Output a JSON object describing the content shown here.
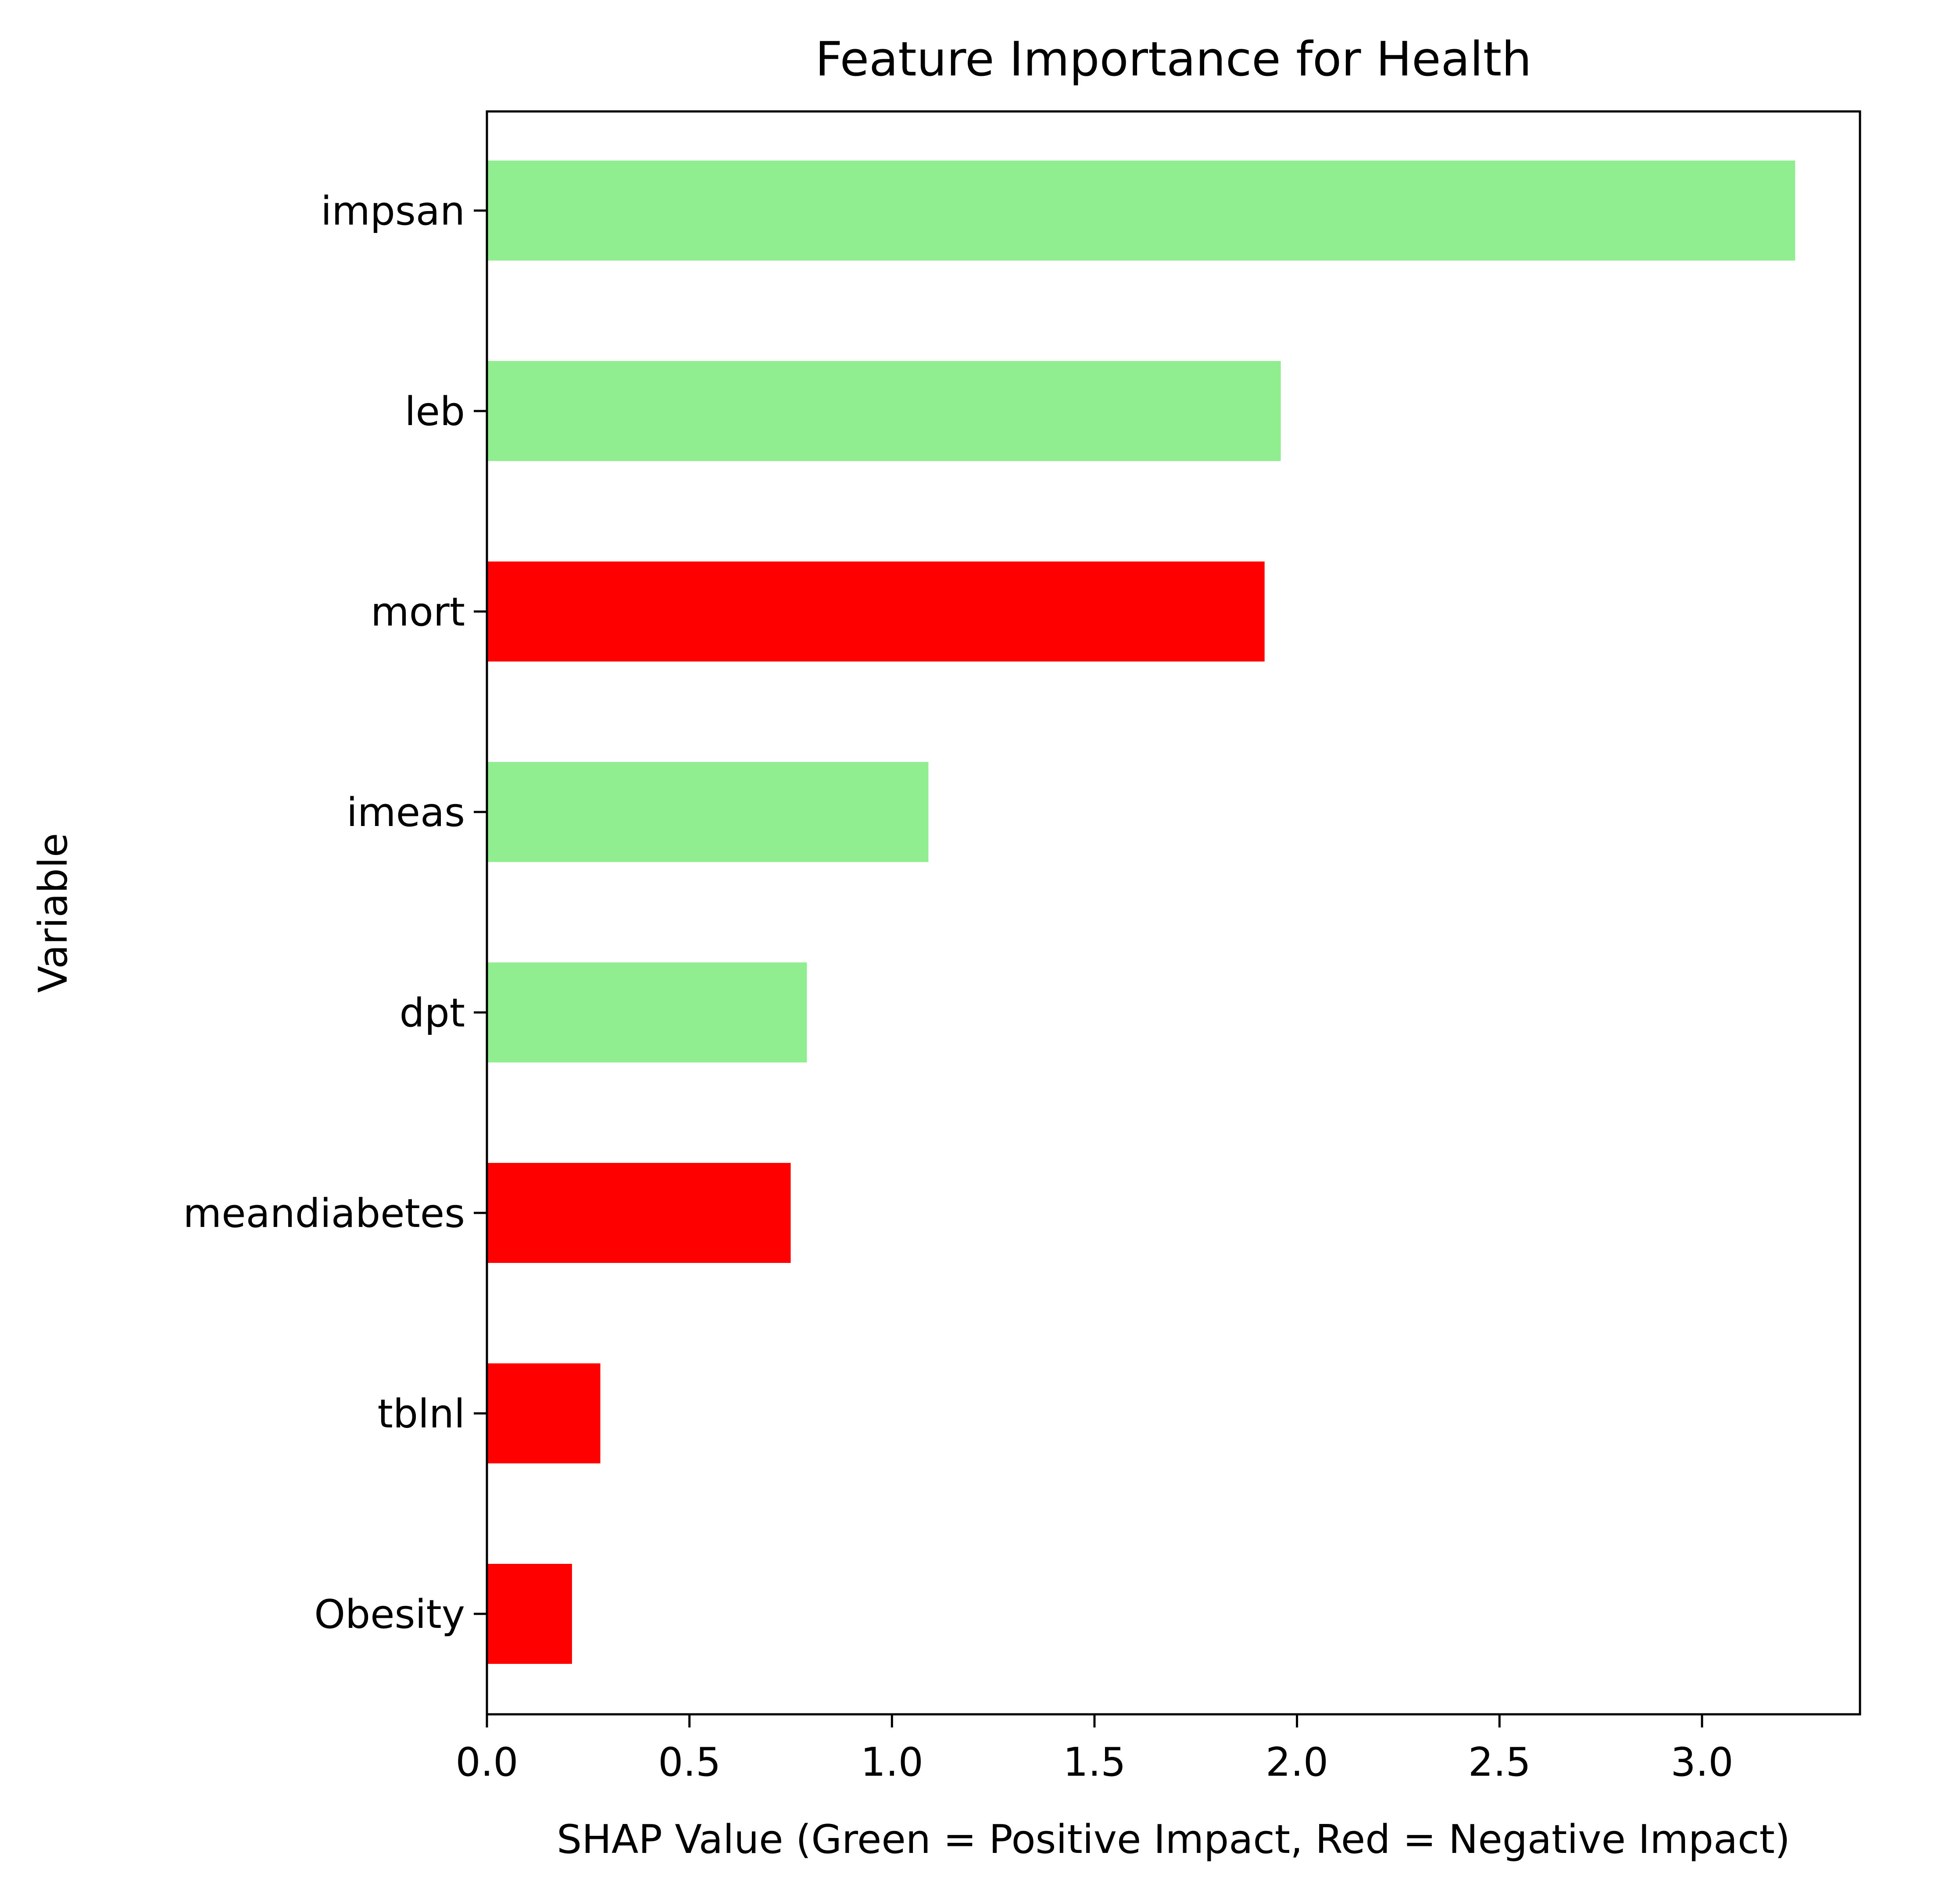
{
  "chart_data": {
    "type": "bar",
    "orientation": "horizontal",
    "title": "Feature Importance for Health",
    "xlabel": "SHAP Value (Green = Positive Impact, Red = Negative Impact)",
    "ylabel": "Variable",
    "xlim": [
      0,
      3.39
    ],
    "xticks": [
      "0.0",
      "0.5",
      "1.0",
      "1.5",
      "2.0",
      "2.5",
      "3.0"
    ],
    "grid": false,
    "legend": "none",
    "colors": {
      "positive": "#90ee90",
      "negative": "#ff0000"
    },
    "categories": [
      "impsan",
      "leb",
      "mort",
      "imeas",
      "dpt",
      "meandiabetes",
      "tblnl",
      "Obesity"
    ],
    "values": [
      3.23,
      1.96,
      1.92,
      1.09,
      0.79,
      0.75,
      0.28,
      0.21
    ],
    "impact": [
      "positive",
      "positive",
      "negative",
      "positive",
      "positive",
      "negative",
      "negative",
      "negative"
    ]
  }
}
